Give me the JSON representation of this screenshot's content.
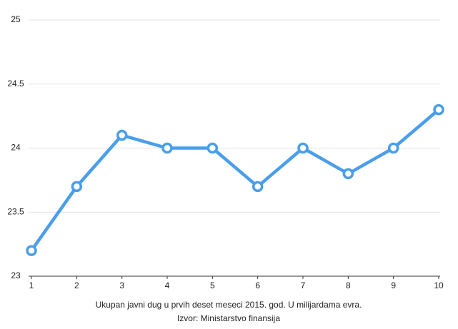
{
  "chart_data": {
    "type": "line",
    "x": [
      1,
      2,
      3,
      4,
      5,
      6,
      7,
      8,
      9,
      10
    ],
    "series": [
      {
        "color": "#4a9eea",
        "values": [
          23.2,
          23.7,
          24.1,
          24.0,
          24.0,
          23.7,
          24.0,
          23.8,
          24.0,
          24.3
        ]
      }
    ],
    "xlim": [
      1,
      10
    ],
    "xticks": [
      1,
      2,
      3,
      4,
      5,
      6,
      7,
      8,
      9,
      10
    ],
    "ylim": [
      23,
      25
    ],
    "yticks": [
      23,
      23.5,
      24,
      24.5,
      25
    ],
    "grid": true,
    "caption": "Ukupan javni dug u prvih deset meseci 2015. god. U milijardama evra.",
    "source": "Izvor: Ministarstvo finansija"
  }
}
